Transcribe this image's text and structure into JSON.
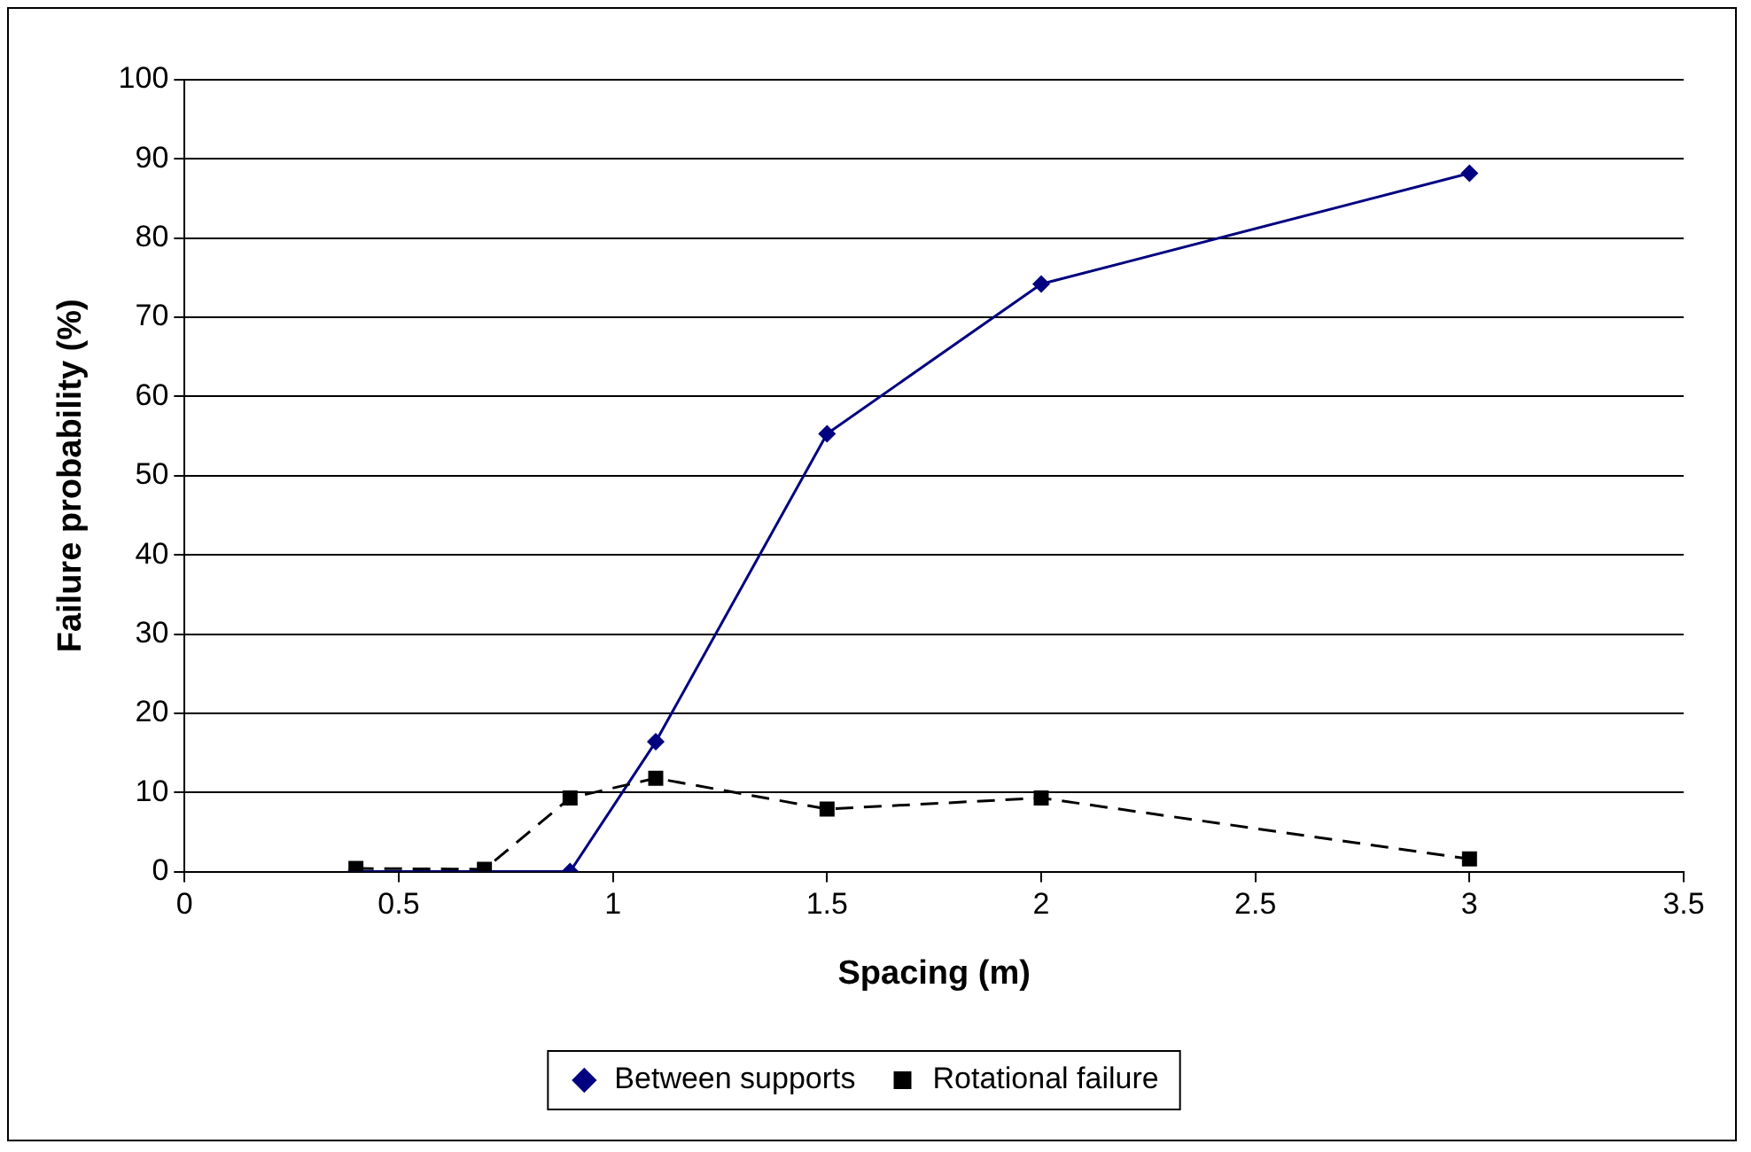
{
  "chart_data": {
    "type": "line",
    "xlabel": "Spacing (m)",
    "ylabel": "Failure probability (%)",
    "x": [
      0.4,
      0.7,
      0.9,
      1.1,
      1.5,
      2,
      3
    ],
    "series": [
      {
        "name": "Between supports",
        "color": "#000080",
        "marker": "diamond",
        "line_style": "solid",
        "values": [
          0,
          0,
          0,
          16.4,
          55.3,
          74.2,
          88.2
        ]
      },
      {
        "name": "Rotational failure",
        "color": "#000000",
        "marker": "square",
        "line_style": "dashed",
        "values": [
          0.4,
          0.3,
          9.3,
          11.8,
          7.9,
          9.3,
          1.6
        ]
      }
    ],
    "xlim": [
      0,
      3.5
    ],
    "xticks": [
      0,
      0.5,
      1,
      1.5,
      2,
      2.5,
      3,
      3.5
    ],
    "ylim": [
      0,
      100
    ],
    "yticks": [
      0,
      10,
      20,
      30,
      40,
      50,
      60,
      70,
      80,
      90,
      100
    ],
    "grid": "y",
    "legend": "bottom"
  }
}
